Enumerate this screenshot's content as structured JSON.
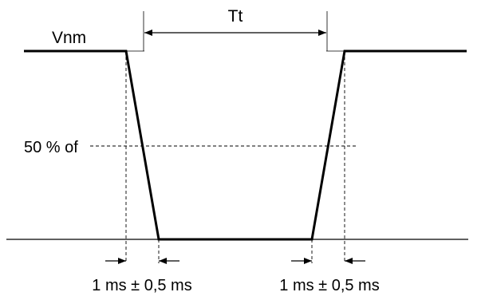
{
  "labels": {
    "nominal_voltage": "Vnm",
    "interval": "Tt",
    "threshold": "50 % of",
    "fall_time": "1 ms ± 0,5 ms",
    "rise_time": "1 ms ± 0,5 ms"
  }
}
